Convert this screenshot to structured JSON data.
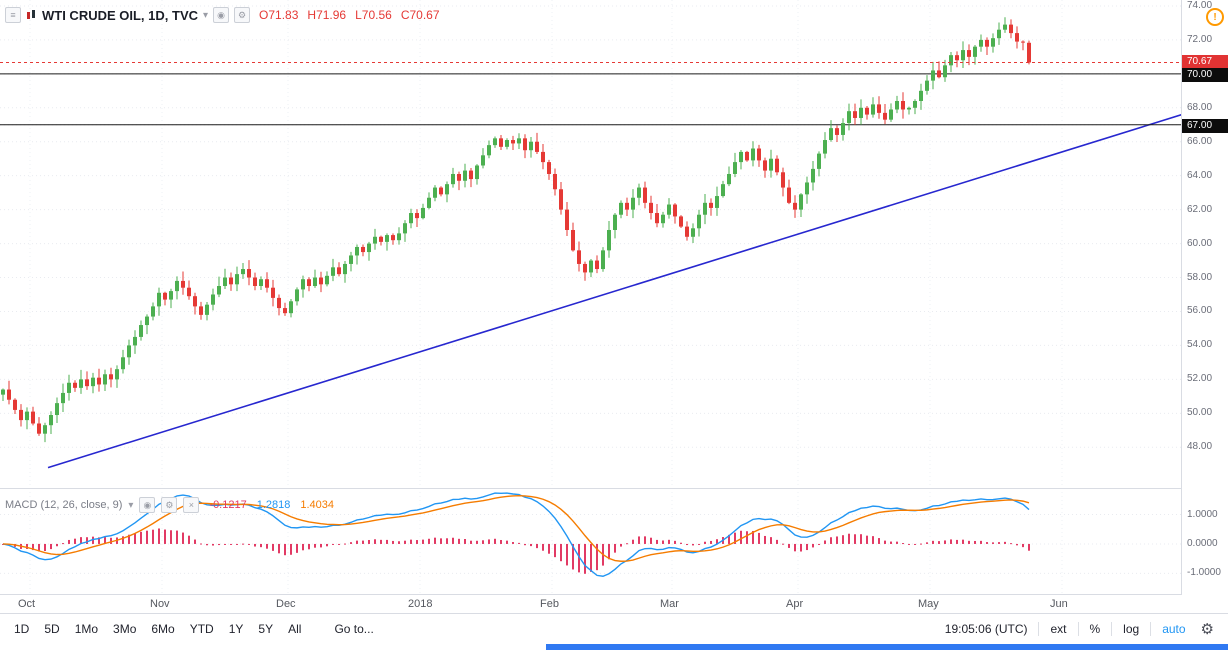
{
  "header": {
    "title": "WTI CRUDE OIL, 1D, TVC",
    "ohlc_color": "#e53935",
    "ohlc": [
      {
        "label": "O",
        "value": "71.83"
      },
      {
        "label": "H",
        "value": "71.96"
      },
      {
        "label": "L",
        "value": "70.56"
      },
      {
        "label": "C",
        "value": "70.67"
      }
    ]
  },
  "icons": {
    "menu": "≡",
    "chevron_down": "▾",
    "eye": "◉",
    "gear": "⚙",
    "close": "×",
    "alert": "!"
  },
  "macd_legend": {
    "title": "MACD (12, 26, close, 9)",
    "values": [
      {
        "text": "-0.1217",
        "color": "#e23a64"
      },
      {
        "text": "1.2818",
        "color": "#2196f3"
      },
      {
        "text": "1.4034",
        "color": "#f57c00"
      }
    ]
  },
  "toolbar": {
    "ranges": [
      "1D",
      "5D",
      "1Mo",
      "3Mo",
      "6Mo",
      "YTD",
      "1Y",
      "5Y",
      "All"
    ],
    "goto_label": "Go to...",
    "clock": "19:05:06 (UTC)",
    "modes": [
      "ext",
      "%",
      "log",
      "auto"
    ],
    "active_mode": "auto",
    "active_mode_color": "#2196f3"
  },
  "chart_data": {
    "type": "candlestick",
    "title": "WTI CRUDE OIL, 1D, TVC",
    "interval": "1D",
    "exchange": "TVC",
    "price_ylim": [
      45.6,
      74.35
    ],
    "price_ticks": [
      74,
      72,
      68,
      66,
      64,
      62,
      60,
      58,
      56,
      54,
      52,
      50,
      48
    ],
    "levels": [
      {
        "price": 70.0,
        "label": "70.00"
      },
      {
        "price": 67.0,
        "label": "67.00"
      }
    ],
    "current_price": {
      "value": 70.67,
      "label": "70.67"
    },
    "last_ohlc": {
      "open": 71.83,
      "high": 71.96,
      "low": 70.56,
      "close": 70.67
    },
    "total_slots": 197,
    "x_ticks": [
      {
        "label": "Oct",
        "slot": 5
      },
      {
        "label": "Nov",
        "slot": 27
      },
      {
        "label": "Dec",
        "slot": 48
      },
      {
        "label": "2018",
        "slot": 70
      },
      {
        "label": "Feb",
        "slot": 92
      },
      {
        "label": "Mar",
        "slot": 112
      },
      {
        "label": "Apr",
        "slot": 133
      },
      {
        "label": "May",
        "slot": 155
      },
      {
        "label": "Jun",
        "slot": 177
      }
    ],
    "trendline": {
      "from_slot": 8,
      "from_price": 46.8,
      "to_slot": 197,
      "to_price": 67.6
    },
    "closes": [
      51.4,
      50.8,
      50.2,
      49.6,
      50.1,
      49.4,
      48.8,
      49.3,
      49.9,
      50.6,
      51.2,
      51.8,
      51.5,
      52.0,
      51.6,
      52.1,
      51.7,
      52.3,
      52.0,
      52.6,
      53.3,
      54.0,
      54.5,
      55.2,
      55.7,
      56.3,
      57.1,
      56.7,
      57.2,
      57.8,
      57.4,
      56.9,
      56.3,
      55.8,
      56.4,
      57.0,
      57.5,
      58.0,
      57.6,
      58.2,
      58.5,
      58.0,
      57.5,
      57.9,
      57.4,
      56.8,
      56.2,
      55.9,
      56.6,
      57.3,
      57.9,
      57.5,
      58.0,
      57.6,
      58.1,
      58.6,
      58.2,
      58.8,
      59.3,
      59.8,
      59.5,
      60.0,
      60.4,
      60.1,
      60.5,
      60.2,
      60.6,
      61.2,
      61.8,
      61.5,
      62.1,
      62.7,
      63.3,
      62.9,
      63.5,
      64.1,
      63.7,
      64.3,
      63.8,
      64.6,
      65.2,
      65.8,
      66.2,
      65.7,
      66.1,
      65.9,
      66.2,
      65.5,
      66.0,
      65.4,
      64.8,
      64.1,
      63.2,
      62.0,
      60.8,
      59.6,
      58.8,
      58.3,
      59.0,
      58.5,
      59.6,
      60.8,
      61.7,
      62.4,
      62.0,
      62.7,
      63.3,
      62.4,
      61.8,
      61.2,
      61.7,
      62.3,
      61.6,
      61.0,
      60.4,
      60.9,
      61.7,
      62.4,
      62.1,
      62.8,
      63.5,
      64.1,
      64.8,
      65.4,
      64.9,
      65.6,
      64.9,
      64.3,
      65.0,
      64.2,
      63.3,
      62.4,
      62.0,
      62.9,
      63.6,
      64.4,
      65.3,
      66.1,
      66.8,
      66.4,
      67.1,
      67.8,
      67.4,
      68.0,
      67.6,
      68.2,
      67.7,
      67.3,
      67.9,
      68.4,
      67.9,
      68.0,
      68.4,
      69.0,
      69.6,
      70.2,
      69.8,
      70.5,
      71.1,
      70.8,
      71.4,
      71.0,
      71.6,
      72.0,
      71.6,
      72.1,
      72.6,
      72.9,
      72.4,
      71.9,
      71.85,
      70.67
    ],
    "macd": {
      "params": [
        12,
        26,
        9
      ],
      "ylim": [
        -1.7,
        1.9
      ],
      "ticks": [
        {
          "label": "1.0000",
          "value": 1
        },
        {
          "label": "0.0000",
          "value": 0
        },
        {
          "label": "-1.0000",
          "value": -1
        }
      ]
    },
    "colors": {
      "up": "#4caf50",
      "down": "#e53935",
      "trendline": "#2727cf",
      "current_line": "#e53935",
      "level_line": "#1b1b1b",
      "macd_line": "#2196f3",
      "signal_line": "#f57c00",
      "histogram": "#e23a64",
      "badge_current": "#e13333",
      "badge_level": "#0c0c0c",
      "scrollbar": "#3079f2"
    }
  }
}
